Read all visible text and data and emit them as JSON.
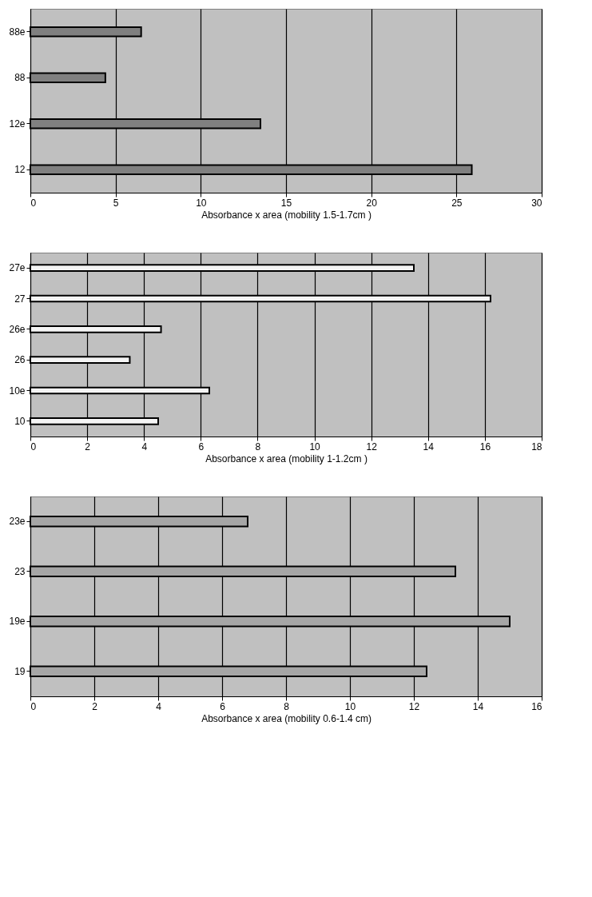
{
  "chart_data": [
    {
      "type": "bar",
      "orientation": "horizontal",
      "categories": [
        "88e",
        "88",
        "12e",
        "12"
      ],
      "values": [
        6.5,
        4.4,
        13.5,
        25.9
      ],
      "color": "#808080",
      "xlabel": "Absorbance x area (mobility 1.5-1.7cm )",
      "xlim": [
        0,
        30
      ],
      "xticks": [
        0,
        5,
        10,
        15,
        20,
        25,
        30
      ],
      "grid": "x"
    },
    {
      "type": "bar",
      "orientation": "horizontal",
      "categories": [
        "27e",
        "27",
        "26e",
        "26",
        "10e",
        "10"
      ],
      "values": [
        13.5,
        16.2,
        4.6,
        3.5,
        6.3,
        4.5
      ],
      "color": "#f4f4f4",
      "xlabel": "Absorbance x area (mobility 1-1.2cm )",
      "xlim": [
        0,
        18
      ],
      "xticks": [
        0,
        2,
        4,
        6,
        8,
        10,
        12,
        14,
        16,
        18
      ],
      "grid": "x"
    },
    {
      "type": "bar",
      "orientation": "horizontal",
      "categories": [
        "23e",
        "23",
        "19e",
        "19"
      ],
      "values": [
        6.8,
        13.3,
        15.0,
        12.4
      ],
      "color": "#a6a6a6",
      "xlabel": "Absorbance x area (mobility 0.6-1.4 cm)",
      "xlim": [
        0,
        16
      ],
      "xticks": [
        0,
        2,
        4,
        6,
        8,
        10,
        12,
        14,
        16
      ],
      "grid": "x"
    }
  ]
}
